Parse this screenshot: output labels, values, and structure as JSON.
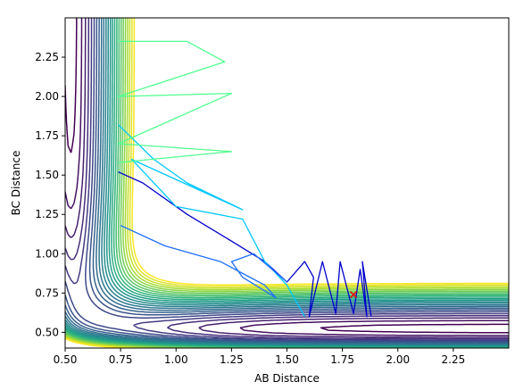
{
  "chart_data": {
    "type": "contour",
    "title": "",
    "xlabel": "AB Distance",
    "ylabel": "BC Distance",
    "xlim": [
      0.5,
      2.5
    ],
    "ylim": [
      0.4,
      2.5
    ],
    "xticks": [
      0.5,
      0.75,
      1.0,
      1.25,
      1.5,
      1.75,
      2.0,
      2.25
    ],
    "xtick_labels": [
      "0.50",
      "0.75",
      "1.00",
      "1.25",
      "1.50",
      "1.75",
      "2.00",
      "2.25"
    ],
    "yticks": [
      0.5,
      0.75,
      1.0,
      1.25,
      1.5,
      1.75,
      2.0,
      2.25
    ],
    "ytick_labels": [
      "0.50",
      "0.75",
      "1.00",
      "1.25",
      "1.50",
      "1.75",
      "2.00",
      "2.25"
    ],
    "grid": false,
    "colormap": "viridis",
    "contour_levels": 24,
    "marker": {
      "x": 1.8,
      "y": 0.74,
      "symbol": "x",
      "color": "#ff0000"
    },
    "trajectories": [
      {
        "color": "#0000cc",
        "points": [
          [
            0.74,
            1.52
          ],
          [
            0.85,
            1.45
          ],
          [
            1.05,
            1.25
          ],
          [
            1.25,
            1.08
          ],
          [
            1.4,
            0.95
          ],
          [
            1.5,
            0.82
          ],
          [
            1.58,
            0.95
          ],
          [
            1.62,
            0.85
          ],
          [
            1.6,
            0.6
          ],
          [
            1.66,
            0.95
          ],
          [
            1.72,
            0.62
          ],
          [
            1.74,
            0.95
          ],
          [
            1.8,
            0.62
          ],
          [
            1.83,
            0.9
          ],
          [
            1.86,
            0.6
          ],
          [
            1.84,
            0.95
          ],
          [
            1.88,
            0.6
          ]
        ]
      },
      {
        "color": "#00c8ff",
        "points": [
          [
            0.74,
            1.82
          ],
          [
            0.9,
            1.6
          ],
          [
            1.05,
            1.45
          ],
          [
            1.3,
            1.28
          ],
          [
            0.8,
            1.6
          ],
          [
            1.0,
            1.3
          ],
          [
            1.3,
            1.22
          ],
          [
            1.4,
            0.95
          ],
          [
            1.5,
            0.8
          ],
          [
            1.58,
            0.6
          ]
        ]
      },
      {
        "color": "#2070ff",
        "points": [
          [
            0.75,
            1.18
          ],
          [
            0.95,
            1.05
          ],
          [
            1.2,
            0.95
          ],
          [
            1.4,
            0.8
          ],
          [
            1.45,
            0.72
          ],
          [
            1.3,
            0.85
          ],
          [
            1.25,
            0.95
          ],
          [
            1.35,
            1.0
          ],
          [
            1.5,
            0.82
          ]
        ]
      },
      {
        "color": "#50ff90",
        "points": [
          [
            0.74,
            2.35
          ],
          [
            1.05,
            2.35
          ],
          [
            1.22,
            2.22
          ],
          [
            0.74,
            2.0
          ],
          [
            1.25,
            2.02
          ],
          [
            0.74,
            1.7
          ],
          [
            1.25,
            1.65
          ],
          [
            0.74,
            1.58
          ]
        ]
      }
    ]
  }
}
